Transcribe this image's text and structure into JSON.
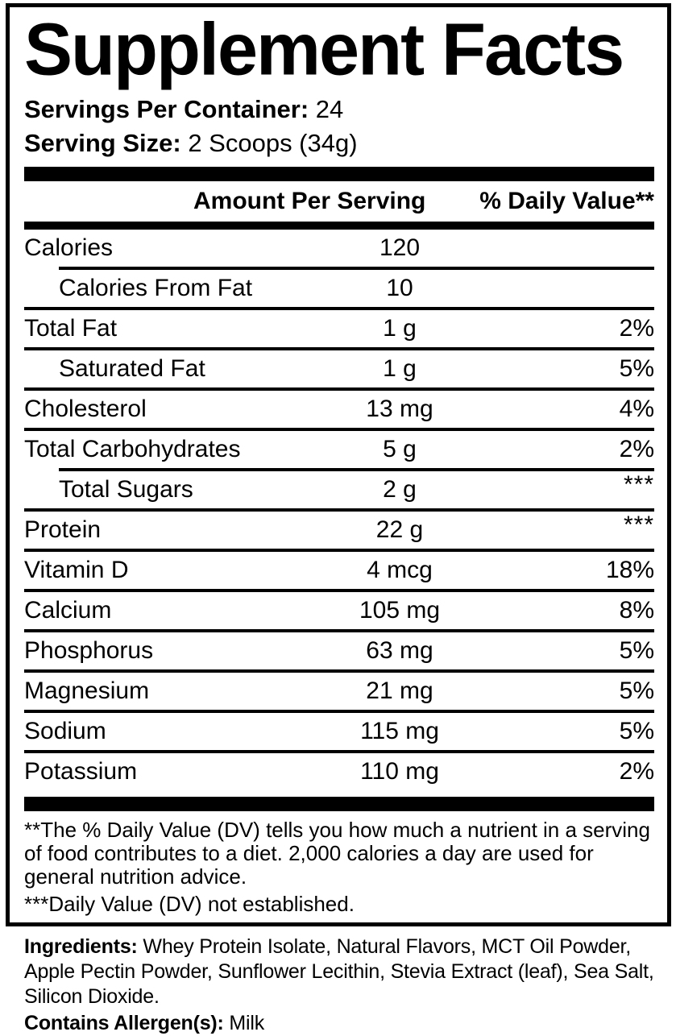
{
  "label": {
    "title": "Supplement Facts",
    "servings_per_container": {
      "label": "Servings Per Container:",
      "value": "24"
    },
    "serving_size": {
      "label": "Serving Size:",
      "value": "2 Scoops (34g)"
    },
    "table": {
      "headers": {
        "amount": "Amount Per Serving",
        "daily_value": "% Daily Value**"
      },
      "rows": [
        {
          "name": "Calories",
          "amount": "120",
          "dv": "",
          "indent": false,
          "divider_after": "indented"
        },
        {
          "name": "Calories From Fat",
          "amount": "10",
          "dv": "",
          "indent": true,
          "divider_after": "full"
        },
        {
          "name": "Total Fat",
          "amount": "1 g",
          "dv": "2%",
          "indent": false,
          "divider_after": "full"
        },
        {
          "name": "Saturated Fat",
          "amount": "1 g",
          "dv": "5%",
          "indent": true,
          "divider_after": "full"
        },
        {
          "name": "Cholesterol",
          "amount": "13 mg",
          "dv": "4%",
          "indent": false,
          "divider_after": "full"
        },
        {
          "name": "Total Carbohydrates",
          "amount": "5 g",
          "dv": "2%",
          "indent": false,
          "divider_after": "indented"
        },
        {
          "name": "Total Sugars",
          "amount": "2 g",
          "dv": "***",
          "indent": true,
          "divider_after": "full"
        },
        {
          "name": "Protein",
          "amount": "22 g",
          "dv": "***",
          "indent": false,
          "divider_after": "full"
        },
        {
          "name": "Vitamin D",
          "amount": "4 mcg",
          "dv": "18%",
          "indent": false,
          "divider_after": "full"
        },
        {
          "name": "Calcium",
          "amount": "105 mg",
          "dv": "8%",
          "indent": false,
          "divider_after": "full"
        },
        {
          "name": "Phosphorus",
          "amount": "63 mg",
          "dv": "5%",
          "indent": false,
          "divider_after": "full"
        },
        {
          "name": "Magnesium",
          "amount": "21 mg",
          "dv": "5%",
          "indent": false,
          "divider_after": "full"
        },
        {
          "name": "Sodium",
          "amount": "115 mg",
          "dv": "5%",
          "indent": false,
          "divider_after": "full"
        },
        {
          "name": "Potassium",
          "amount": "110 mg",
          "dv": "2%",
          "indent": false,
          "divider_after": null
        }
      ]
    },
    "footnotes": [
      "**The % Daily Value (DV) tells you how much a nutrient in a serving of food contributes to a diet. 2,000 calories a day are used for general nutrition advice.",
      "***Daily Value (DV) not established."
    ],
    "ingredients": {
      "label": "Ingredients:",
      "value": " Whey Protein Isolate, Natural Flavors, MCT Oil Powder, Apple Pectin Powder, Sunflower Lecithin, Stevia Extract (leaf), Sea Salt, Silicon Dioxide."
    },
    "allergens": {
      "label": "Contains Allergen(s):",
      "value": " Milk"
    }
  },
  "colors": {
    "text": "#000000",
    "background": "#ffffff",
    "border": "#000000"
  }
}
